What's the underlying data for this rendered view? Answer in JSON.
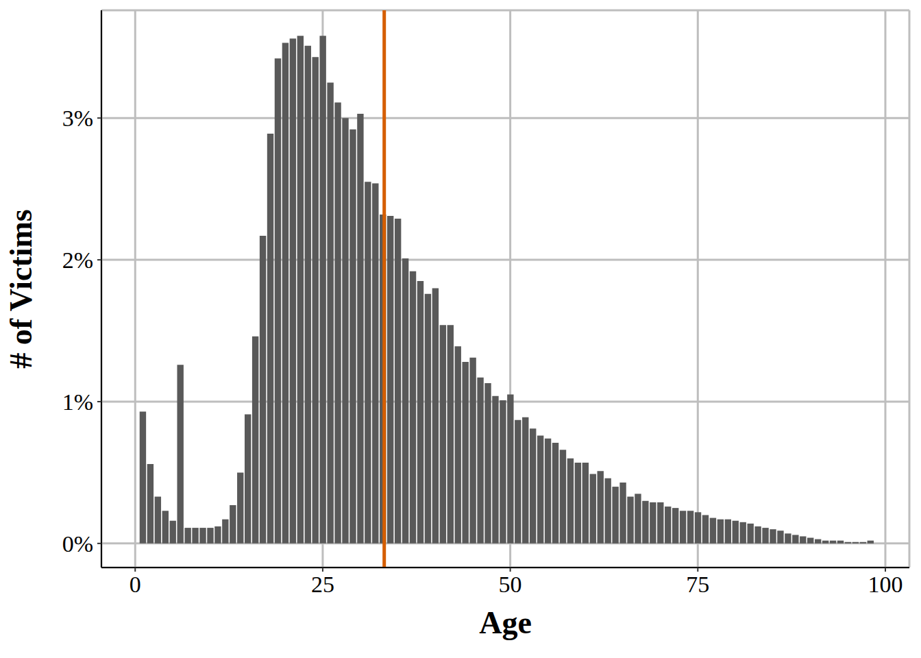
{
  "chart_data": {
    "type": "histogram",
    "x_label": "Age",
    "y_label": "# of Victims",
    "bins": [
      0.5,
      1.5,
      2.5,
      3.5,
      4.5,
      5.5,
      6.5,
      7.5,
      8.5,
      9.5,
      10.5,
      11.5,
      12.5,
      13.5,
      14.5,
      15.5,
      16.5,
      17.5,
      18.5,
      19.5,
      20.5,
      21.5,
      22.5,
      23.5,
      24.5,
      25.5,
      26.5,
      27.5,
      28.5,
      29.5,
      30.5,
      31.5,
      32.5,
      33.5,
      34.5,
      35.5,
      36.5,
      37.5,
      38.5,
      39.5,
      40.5,
      41.5,
      42.5,
      43.5,
      44.5,
      45.5,
      46.5,
      47.5,
      48.5,
      49.5,
      50.5,
      51.5,
      52.5,
      53.5,
      54.5,
      55.5,
      56.5,
      57.5,
      58.5,
      59.5,
      60.5,
      61.5,
      62.5,
      63.5,
      64.5,
      65.5,
      66.5,
      67.5,
      68.5,
      69.5,
      70.5,
      71.5,
      72.5,
      73.5,
      74.5,
      75.5,
      76.5,
      77.5,
      78.5,
      79.5,
      80.5,
      81.5,
      82.5,
      83.5,
      84.5,
      85.5,
      86.5,
      87.5,
      88.5,
      89.5,
      90.5,
      91.5,
      92.5,
      93.5,
      94.5,
      95.5,
      96.5,
      97.5,
      98.5
    ],
    "values": [
      0.93,
      0.56,
      0.33,
      0.23,
      0.16,
      1.26,
      0.11,
      0.11,
      0.11,
      0.11,
      0.12,
      0.17,
      0.27,
      0.5,
      0.91,
      1.46,
      2.17,
      2.89,
      3.42,
      3.53,
      3.56,
      3.58,
      3.51,
      3.43,
      3.58,
      3.25,
      3.11,
      3.0,
      2.92,
      3.03,
      2.55,
      2.54,
      2.32,
      2.31,
      2.29,
      2.01,
      1.92,
      1.85,
      1.76,
      1.8,
      1.54,
      1.54,
      1.39,
      1.28,
      1.31,
      1.17,
      1.13,
      1.04,
      1.01,
      1.05,
      0.87,
      0.89,
      0.81,
      0.76,
      0.74,
      0.71,
      0.66,
      0.6,
      0.57,
      0.57,
      0.49,
      0.51,
      0.46,
      0.4,
      0.43,
      0.33,
      0.35,
      0.3,
      0.29,
      0.29,
      0.26,
      0.25,
      0.23,
      0.23,
      0.22,
      0.2,
      0.18,
      0.17,
      0.17,
      0.16,
      0.15,
      0.14,
      0.12,
      0.11,
      0.1,
      0.09,
      0.07,
      0.06,
      0.05,
      0.04,
      0.03,
      0.02,
      0.02,
      0.02,
      0.01,
      0.01,
      0.01,
      0.02
    ],
    "color": "#595959",
    "reference_line": 33.2,
    "xlim": [
      -4.5,
      103.2
    ],
    "xticks": [
      0,
      25,
      50,
      75,
      100
    ],
    "ylim": [
      -0.17,
      3.76
    ],
    "yticks": [
      {
        "value": 0,
        "label": "0%"
      },
      {
        "value": 1,
        "label": "1%"
      },
      {
        "value": 2,
        "label": "2%"
      },
      {
        "value": 3,
        "label": "3%"
      }
    ],
    "grid": true
  }
}
